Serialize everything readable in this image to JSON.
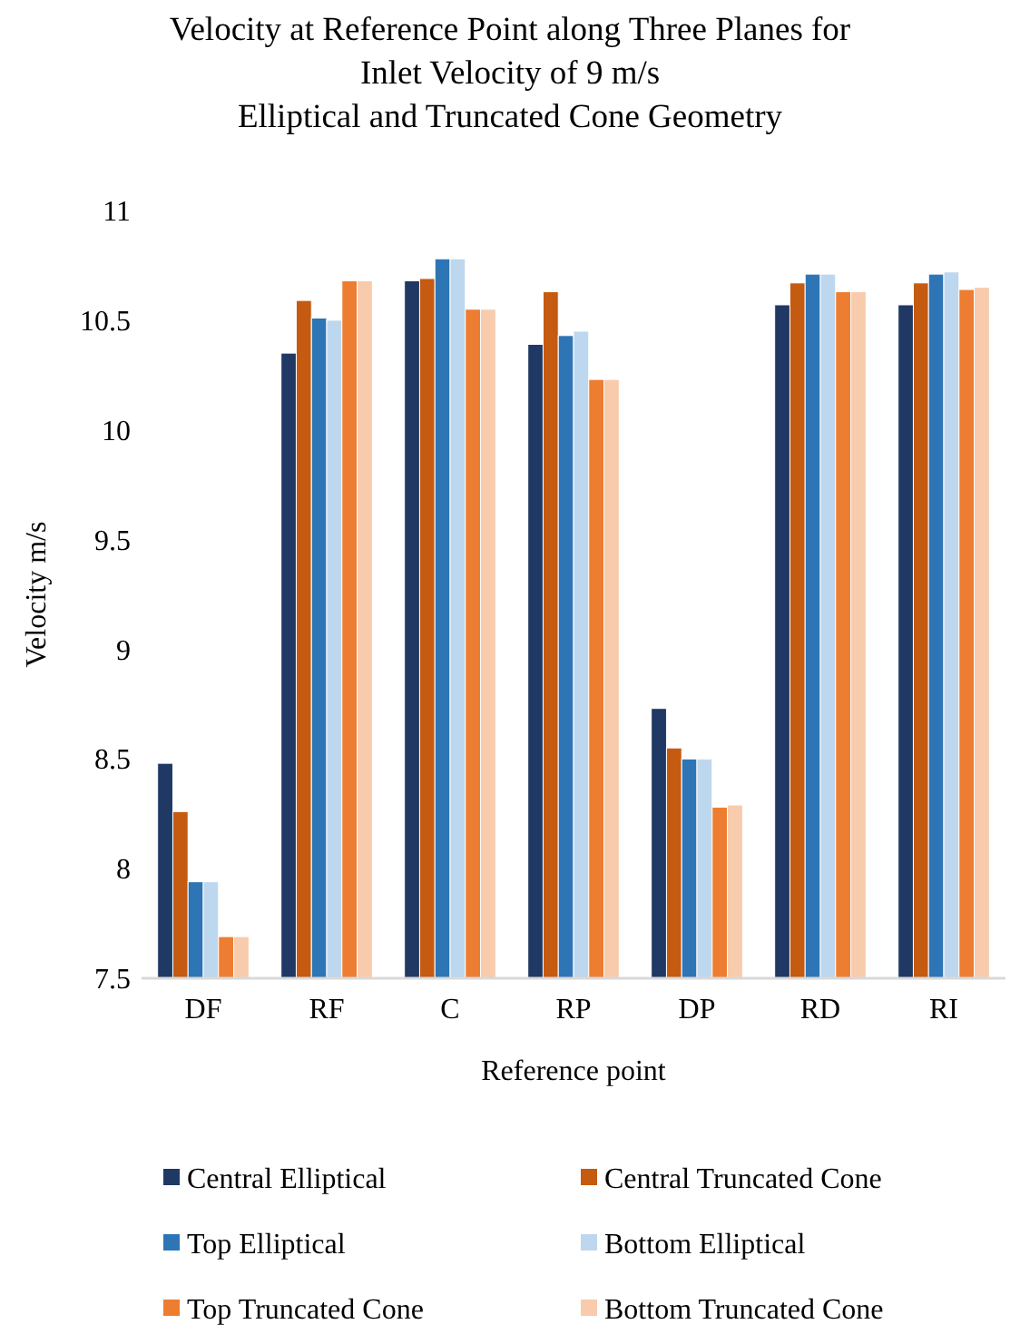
{
  "chart_data": {
    "type": "bar",
    "title": "Velocity at Reference Point along Three Planes for\nInlet Velocity of 9 m/s\nElliptical and Truncated Cone Geometry",
    "xlabel": "Reference point",
    "ylabel": "Velocity m/s",
    "categories": [
      "DF",
      "RF",
      "C",
      "RP",
      "DP",
      "RD",
      "RI"
    ],
    "series": [
      {
        "name": "Central Elliptical",
        "color": "#203864",
        "values": [
          8.48,
          10.35,
          10.68,
          10.39,
          8.73,
          10.57,
          10.57
        ]
      },
      {
        "name": "Central Truncated Cone",
        "color": "#c55a11",
        "values": [
          8.26,
          10.59,
          10.69,
          10.63,
          8.55,
          10.67,
          10.67
        ]
      },
      {
        "name": "Top Elliptical",
        "color": "#2e75b6",
        "values": [
          7.94,
          10.51,
          10.78,
          10.43,
          8.5,
          10.71,
          10.71
        ]
      },
      {
        "name": "Bottom Elliptical",
        "color": "#bdd7ee",
        "values": [
          7.94,
          10.5,
          10.78,
          10.45,
          8.5,
          10.71,
          10.72
        ]
      },
      {
        "name": "Top Truncated Cone",
        "color": "#ed7d31",
        "values": [
          7.69,
          10.68,
          10.55,
          10.23,
          8.28,
          10.63,
          10.64
        ]
      },
      {
        "name": "Bottom Truncated Cone",
        "color": "#f8cbad",
        "values": [
          7.69,
          10.68,
          10.55,
          10.23,
          8.29,
          10.63,
          10.65
        ]
      }
    ],
    "ylim": [
      7.5,
      11
    ],
    "yticks": [
      7.5,
      8,
      8.5,
      9,
      9.5,
      10,
      10.5,
      11
    ],
    "grid": false,
    "legend": "bottom"
  }
}
